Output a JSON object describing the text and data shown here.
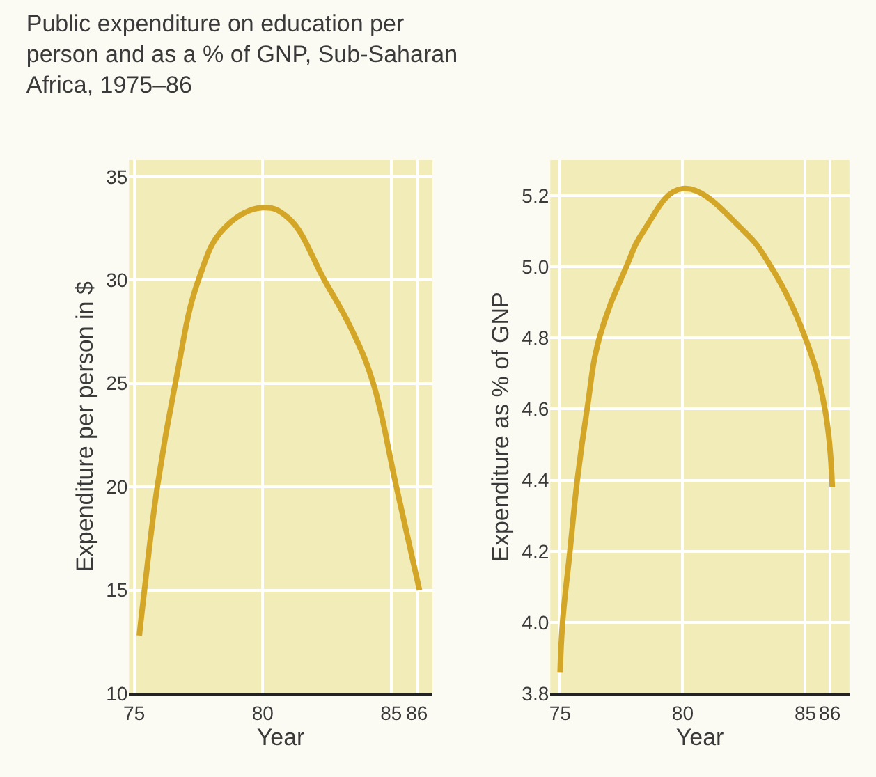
{
  "chart_data": [
    {
      "type": "line",
      "title": "Public expenditure on education per\nperson and as a % of GNP, Sub-Saharan\nAfrica, 1975–86",
      "xlabel": "Year",
      "ylabel": "Expenditure per person in $",
      "x": [
        75.2,
        75.4,
        75.9,
        76.6,
        77.5,
        78.5,
        80,
        81,
        82.4,
        83.5,
        84.3,
        85.2,
        86.1
      ],
      "series": [
        {
          "color": "#d4a628",
          "values": [
            12.8,
            15,
            20,
            25,
            30,
            32.5,
            33.5,
            33,
            30,
            27.5,
            25,
            20,
            15
          ]
        }
      ],
      "xlim": [
        74.8,
        86.6
      ],
      "xticks": [
        75,
        80,
        85,
        86
      ],
      "ylim": [
        10,
        35.8
      ],
      "yticks": [
        10,
        15,
        20,
        25,
        30,
        35
      ],
      "grid": true,
      "marker": "none",
      "line_style": "solid"
    },
    {
      "type": "line",
      "xlabel": "Year",
      "ylabel": "Expenditure as % of GNP",
      "x": [
        75,
        75.1,
        75.4,
        75.7,
        76.1,
        76.6,
        77.7,
        78.4,
        80,
        82.5,
        83.6,
        85.0,
        85.8,
        86.1
      ],
      "series": [
        {
          "color": "#d4a628",
          "values": [
            3.86,
            4.0,
            4.2,
            4.4,
            4.6,
            4.8,
            5.0,
            5.1,
            5.22,
            5.1,
            5.0,
            4.8,
            4.6,
            4.38
          ]
        }
      ],
      "xlim": [
        74.6,
        86.8
      ],
      "xticks": [
        75,
        80,
        85,
        86
      ],
      "ylim": [
        3.8,
        5.3
      ],
      "yticks": [
        {
          "value": 3.8,
          "label": "3.8"
        },
        {
          "value": 4.0,
          "label": "4.0"
        },
        {
          "value": 4.2,
          "label": "4.2"
        },
        {
          "value": 4.4,
          "label": "4.4"
        },
        {
          "value": 4.6,
          "label": "4.6"
        },
        {
          "value": 4.8,
          "label": "4.8"
        },
        {
          "value": 5.0,
          "label": "5.0"
        },
        {
          "value": 5.2,
          "label": "5.2"
        }
      ],
      "grid": true,
      "marker": "none",
      "line_style": "solid"
    }
  ]
}
